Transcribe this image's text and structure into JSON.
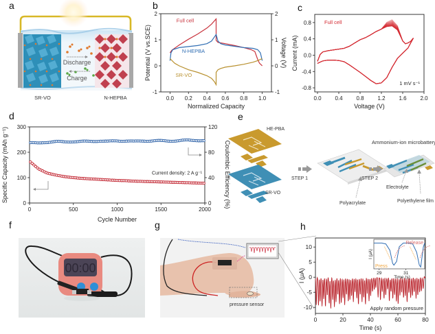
{
  "figure": {
    "panel_letters": [
      "a",
      "b",
      "c",
      "d",
      "e",
      "f",
      "g",
      "h"
    ]
  },
  "panel_a": {
    "left_electrode": "SR-VO",
    "right_electrode": "N-HEPBA",
    "arrow_discharge": "Discharge",
    "arrow_charge": "Charge",
    "colors": {
      "sr_vo": "#2e8fb8",
      "n_hepba": "#c0404f",
      "wire": "#d8b826",
      "ion_orange": "#e07a2e",
      "ion_green": "#5aa845"
    }
  },
  "panel_e": {
    "label_hepba": "HE-PBA",
    "label_srvo": "SR-VO",
    "step1": "STEP 1",
    "step2": "STEP 2",
    "title": "Ammonium-ion microbattery",
    "label_polyacrylate": "Polyacrylate",
    "label_electrolyte": "Electrolyte",
    "label_film": "Polyethylene film",
    "colors": {
      "gold": "#c99a2e",
      "blue": "#3f8fb5",
      "green": "#6b8f3a"
    }
  },
  "panel_f": {
    "timer_display": "00:00",
    "colors": {
      "timer_body": "#e98a80",
      "buttons": "#2f8fd6",
      "background": "#e6e8e8"
    }
  },
  "panel_g": {
    "label_sensor": "pressure sensor"
  },
  "chart_data": [
    {
      "id": "b",
      "type": "line",
      "title": "",
      "xlabel": "Normalized Capacity",
      "ylabel": "Potential (V vs.SCE)",
      "y2label": "Voltage (V)",
      "xlim": [
        -0.1,
        1.1
      ],
      "ylim": [
        -1,
        2
      ],
      "y2lim": [
        -1,
        2
      ],
      "xticks": [
        "0.0",
        "0.2",
        "0.4",
        "0.6",
        "0.8",
        "1.0"
      ],
      "yticks": [
        "-1",
        "0",
        "1",
        "2"
      ],
      "y2ticks": [
        "-1",
        "0",
        "1",
        "2"
      ],
      "series": [
        {
          "name": "Full cell",
          "color": "#c8323c",
          "x": [
            0.0,
            0.02,
            0.1,
            0.2,
            0.3,
            0.4,
            0.45,
            0.5,
            0.5,
            0.52,
            0.6,
            0.7,
            0.8,
            0.88,
            0.92,
            0.95,
            0.97,
            1.0
          ],
          "y": [
            0.5,
            0.6,
            0.8,
            1.02,
            1.22,
            1.45,
            1.6,
            1.8,
            0.98,
            0.9,
            0.85,
            0.78,
            0.7,
            0.62,
            0.55,
            0.25,
            0.1,
            0.0
          ]
        },
        {
          "name": "N-HEPBA",
          "color": "#2f6db3",
          "x": [
            0.0,
            0.01,
            0.03,
            0.1,
            0.2,
            0.3,
            0.4,
            0.45,
            0.48,
            0.5,
            0.52,
            0.55,
            0.6,
            0.7,
            0.8,
            0.9,
            0.95,
            0.98,
            1.0
          ],
          "y": [
            0.2,
            0.5,
            0.62,
            0.7,
            0.74,
            0.78,
            0.85,
            0.95,
            1.1,
            1.2,
            0.95,
            0.85,
            0.8,
            0.75,
            0.7,
            0.67,
            0.62,
            0.5,
            0.2
          ]
        },
        {
          "name": "SR-VO",
          "color": "#b8902e",
          "x": [
            0.0,
            0.05,
            0.1,
            0.2,
            0.3,
            0.4,
            0.45,
            0.48,
            0.5,
            0.5,
            0.52,
            0.55,
            0.6,
            0.7,
            0.8,
            0.9,
            0.95,
            1.0
          ],
          "y": [
            0.28,
            0.1,
            0.0,
            -0.15,
            -0.25,
            -0.38,
            -0.48,
            -0.6,
            -0.72,
            -0.25,
            -0.15,
            -0.1,
            -0.05,
            0.0,
            0.06,
            0.14,
            0.2,
            0.28
          ]
        }
      ],
      "annotations": [
        "Full cell",
        "N-HEPBA",
        "SR-VO"
      ]
    },
    {
      "id": "c",
      "type": "line",
      "title": "",
      "xlabel": "Voltage (V)",
      "ylabel": "Current (mA)",
      "xlim": [
        -0.1,
        2.0
      ],
      "ylim": [
        -0.9,
        1.0
      ],
      "xticks": [
        "0.0",
        "0.4",
        "0.8",
        "1.2",
        "1.6",
        "2.0"
      ],
      "yticks": [
        "-0.8",
        "-0.4",
        "0.0",
        "0.4",
        "0.8"
      ],
      "legend": "Full cell",
      "annotation": "1 mV s⁻¹",
      "cycles": 10,
      "series": [
        {
          "name": "CV anodic",
          "color": "#d42a32",
          "x": [
            0.0,
            0.05,
            0.1,
            0.2,
            0.3,
            0.4,
            0.5,
            0.6,
            0.7,
            0.8,
            0.9,
            1.0,
            1.1,
            1.2,
            1.3,
            1.4,
            1.5,
            1.6,
            1.65,
            1.7,
            1.75,
            1.8
          ],
          "y": [
            -0.15,
            0.02,
            0.08,
            0.11,
            0.13,
            0.15,
            0.17,
            0.22,
            0.3,
            0.38,
            0.43,
            0.5,
            0.58,
            0.64,
            0.7,
            0.72,
            0.62,
            0.35,
            0.28,
            0.3,
            0.34,
            0.42
          ]
        },
        {
          "name": "CV cathodic",
          "color": "#d42a32",
          "x": [
            1.8,
            1.75,
            1.7,
            1.6,
            1.5,
            1.4,
            1.3,
            1.2,
            1.1,
            1.0,
            0.9,
            0.8,
            0.7,
            0.6,
            0.5,
            0.4,
            0.3,
            0.2,
            0.1,
            0.05,
            0.0
          ],
          "y": [
            0.42,
            0.3,
            0.18,
            0.05,
            -0.08,
            -0.3,
            -0.55,
            -0.68,
            -0.7,
            -0.62,
            -0.52,
            -0.42,
            -0.33,
            -0.24,
            -0.16,
            -0.13,
            -0.12,
            -0.12,
            -0.14,
            -0.17,
            -0.2
          ]
        }
      ]
    },
    {
      "id": "d",
      "type": "scatter",
      "title": "",
      "xlabel": "Cycle Number",
      "ylabel": "Specific Capacity (mAh g⁻¹)",
      "y2label": "Coulombic Efficiency (%)",
      "xlim": [
        0,
        2000
      ],
      "ylim": [
        0,
        300
      ],
      "y2lim": [
        0,
        120
      ],
      "xticks": [
        "0",
        "500",
        "1000",
        "1500",
        "2000"
      ],
      "yticks": [
        "0",
        "100",
        "200",
        "300"
      ],
      "y2ticks": [
        "0",
        "40",
        "80",
        "120"
      ],
      "annotation": "Current density: 2 A g⁻¹",
      "series": [
        {
          "name": "Specific capacity",
          "axis": "left",
          "color": "#c0202c",
          "x": [
            10,
            100,
            200,
            300,
            400,
            500,
            600,
            700,
            800,
            900,
            1000,
            1100,
            1200,
            1300,
            1400,
            1500,
            1600,
            1700,
            1800,
            1900,
            2000
          ],
          "y": [
            162,
            135,
            118,
            110,
            104,
            100,
            97,
            95,
            93,
            91,
            89,
            88,
            86,
            85,
            84,
            83,
            82,
            81,
            80,
            79,
            78
          ]
        },
        {
          "name": "Coulombic efficiency",
          "axis": "right",
          "color": "#2a5fa6",
          "x": [
            10,
            100,
            200,
            300,
            400,
            500,
            600,
            700,
            800,
            900,
            1000,
            1100,
            1200,
            1300,
            1400,
            1500,
            1600,
            1700,
            1800,
            1900,
            2000
          ],
          "y": [
            95,
            94,
            96,
            97,
            96,
            97,
            97,
            97,
            98,
            97,
            98,
            98,
            97,
            98,
            98,
            98,
            98,
            98,
            99,
            99,
            98
          ]
        }
      ]
    },
    {
      "id": "h",
      "type": "line",
      "title": "",
      "xlabel": "Time (s)",
      "ylabel": "I (μA)",
      "xlim": [
        0,
        80
      ],
      "ylim": [
        -12,
        13
      ],
      "xticks": [
        "0",
        "20",
        "40",
        "60",
        "80"
      ],
      "yticks": [
        "-10",
        "-5",
        "0",
        "5",
        "10"
      ],
      "annotation": "Apply random pressure",
      "color": "#b81e26",
      "pulse_times": [
        0.6,
        2.2,
        3.4,
        4.8,
        6.0,
        7.3,
        8.6,
        10.0,
        11.2,
        12.6,
        13.8,
        15.0,
        16.3,
        17.5,
        18.8,
        20.1,
        21.3,
        22.6,
        23.9,
        25.1,
        26.3,
        27.6,
        28.8,
        30.1,
        31.3,
        32.6,
        33.9,
        35.2,
        36.4,
        37.7,
        39.0,
        40.2,
        41.5,
        42.8,
        44.0,
        45.6,
        47.3,
        48.6,
        49.9,
        51.2,
        52.5,
        53.8,
        55.0,
        56.3,
        57.6,
        58.9,
        60.2,
        61.5,
        62.8,
        64.1,
        65.4,
        66.7,
        68.0,
        69.3,
        70.6,
        71.9,
        73.2,
        74.5,
        75.8,
        77.1,
        78.4
      ],
      "pulse_depths": [
        -9,
        -9.5,
        -8,
        -9.8,
        -7,
        -10,
        -6,
        -9,
        -10.5,
        -7.5,
        -10,
        -8,
        -6,
        -9,
        -8.5,
        -7,
        -9,
        -6,
        -8,
        -7.5,
        -6.5,
        -8,
        -5,
        -7,
        -9,
        -6,
        -8,
        -7,
        -9,
        -5.5,
        -8,
        -6,
        -5,
        -4,
        -3.5,
        -6.5,
        -7.5,
        -5,
        -7,
        -6,
        -4,
        -8,
        -5,
        -7,
        -6,
        -8,
        -9,
        -6,
        -5,
        -7,
        -6,
        -8.5,
        -5,
        -7,
        -6,
        -5,
        -7,
        -6,
        -5,
        -4.5,
        -4
      ],
      "inset": {
        "xlabel": "Time (s)",
        "ylabel": "I (μA)",
        "xticks": [
          "29",
          "31"
        ],
        "xlim": [
          28.6,
          32.4
        ],
        "label_press": "Press",
        "label_release": "Release",
        "color_line": "#2f6db3",
        "color_press": "#f0a640",
        "color_release": "#d86a6a",
        "x": [
          28.6,
          29.2,
          29.5,
          29.8,
          30.0,
          30.1,
          30.3,
          30.5,
          30.8,
          31.2,
          31.5,
          31.8,
          32.0,
          32.1,
          32.3,
          32.4
        ],
        "y": [
          10,
          10,
          9.5,
          6,
          -1,
          -2,
          0,
          8,
          10,
          10,
          9.5,
          5,
          -2,
          -3,
          8,
          10
        ]
      }
    }
  ]
}
